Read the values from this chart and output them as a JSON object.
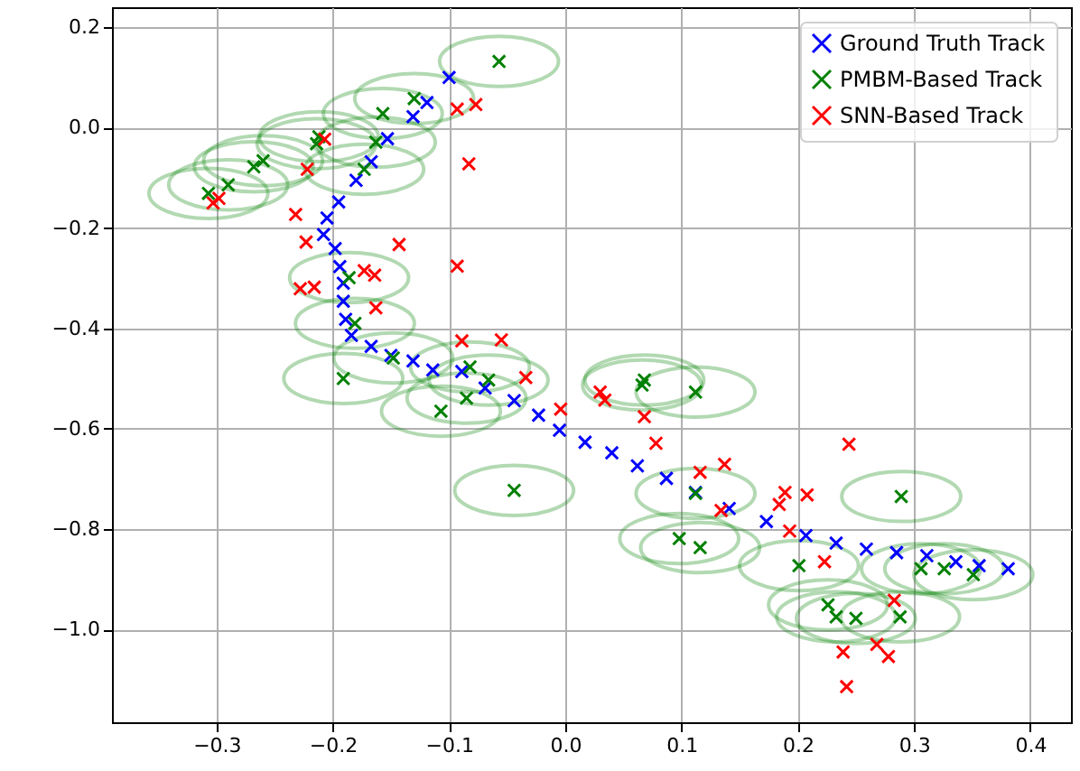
{
  "chart_data": {
    "type": "scatter",
    "marker": "cross",
    "grid": true,
    "legend": "top right",
    "xlim": [
      -0.39,
      0.435
    ],
    "ylim": [
      -1.185,
      0.24
    ],
    "xticks": [
      {
        "value": -0.3,
        "label": "−0.3"
      },
      {
        "value": -0.2,
        "label": "−0.2"
      },
      {
        "value": -0.1,
        "label": "−0.1"
      },
      {
        "value": 0,
        "label": "0.0"
      },
      {
        "value": 0.1,
        "label": "0.1"
      },
      {
        "value": 0.2,
        "label": "0.2"
      },
      {
        "value": 0.3,
        "label": "0.3"
      },
      {
        "value": 0.4,
        "label": "0.4"
      }
    ],
    "yticks": [
      {
        "value": -1,
        "label": "−1.0"
      },
      {
        "value": -0.8,
        "label": "−0.8"
      },
      {
        "value": -0.6,
        "label": "−0.6"
      },
      {
        "value": -0.4,
        "label": "−0.4"
      },
      {
        "value": -0.2,
        "label": "−0.2"
      },
      {
        "value": 0,
        "label": "0.0"
      },
      {
        "value": 0.2,
        "label": "0.2"
      }
    ],
    "series": [
      {
        "name": "Ground Truth Track",
        "color": "#0000ff",
        "x": [
          -0.1,
          -0.119,
          -0.131,
          -0.153,
          -0.167,
          -0.18,
          -0.195,
          -0.205,
          -0.208,
          -0.198,
          -0.194,
          -0.191,
          -0.191,
          -0.189,
          -0.184,
          -0.167,
          -0.15,
          -0.131,
          -0.114,
          -0.089,
          -0.069,
          -0.044,
          -0.023,
          -0.005,
          0.017,
          0.04,
          0.062,
          0.087,
          0.112,
          0.141,
          0.173,
          0.207,
          0.233,
          0.259,
          0.285,
          0.311,
          0.336,
          0.356,
          0.381
        ],
        "values": [
          0.1,
          0.05,
          0.022,
          -0.022,
          -0.068,
          -0.105,
          -0.148,
          -0.18,
          -0.213,
          -0.241,
          -0.277,
          -0.31,
          -0.346,
          -0.382,
          -0.414,
          -0.436,
          -0.454,
          -0.465,
          -0.483,
          -0.486,
          -0.519,
          -0.544,
          -0.573,
          -0.603,
          -0.627,
          -0.648,
          -0.674,
          -0.699,
          -0.727,
          -0.759,
          -0.785,
          -0.813,
          -0.828,
          -0.84,
          -0.847,
          -0.853,
          -0.865,
          -0.873,
          -0.879
        ]
      },
      {
        "name": "PMBM-Based Track",
        "color": "#008000",
        "x": [
          -0.057,
          -0.13,
          -0.157,
          -0.163,
          -0.173,
          -0.214,
          -0.212,
          -0.26,
          -0.268,
          -0.29,
          -0.307,
          -0.186,
          -0.181,
          -0.191,
          -0.148,
          -0.082,
          -0.066,
          -0.107,
          -0.085,
          -0.044,
          0.068,
          0.066,
          0.112,
          0.112,
          0.098,
          0.116,
          0.201,
          0.226,
          0.233,
          0.25,
          0.288,
          0.289,
          0.306,
          0.326,
          0.351
        ],
        "values": [
          0.132,
          0.058,
          0.028,
          -0.029,
          -0.083,
          -0.032,
          -0.018,
          -0.066,
          -0.078,
          -0.114,
          -0.131,
          -0.299,
          -0.39,
          -0.5,
          -0.459,
          -0.477,
          -0.503,
          -0.565,
          -0.539,
          -0.723,
          -0.503,
          -0.513,
          -0.527,
          -0.729,
          -0.819,
          -0.837,
          -0.873,
          -0.951,
          -0.975,
          -0.978,
          -0.975,
          -0.735,
          -0.879,
          -0.879,
          -0.891
        ]
      },
      {
        "name": "SNN-Based Track",
        "color": "#ff0000",
        "x": [
          -0.093,
          -0.077,
          -0.083,
          -0.207,
          -0.222,
          -0.298,
          -0.303,
          -0.232,
          -0.223,
          -0.143,
          -0.093,
          -0.228,
          -0.216,
          -0.173,
          -0.164,
          -0.163,
          -0.089,
          -0.055,
          -0.034,
          -0.004,
          0.03,
          0.034,
          0.068,
          0.078,
          0.116,
          0.137,
          0.134,
          0.189,
          0.184,
          0.208,
          0.193,
          0.223,
          0.244,
          0.283,
          0.239,
          0.268,
          0.278,
          0.242
        ],
        "values": [
          0.037,
          0.046,
          -0.072,
          -0.023,
          -0.083,
          -0.141,
          -0.15,
          -0.173,
          -0.228,
          -0.233,
          -0.276,
          -0.321,
          -0.318,
          -0.285,
          -0.294,
          -0.359,
          -0.425,
          -0.423,
          -0.498,
          -0.561,
          -0.527,
          -0.543,
          -0.576,
          -0.629,
          -0.687,
          -0.671,
          -0.763,
          -0.727,
          -0.751,
          -0.732,
          -0.804,
          -0.865,
          -0.631,
          -0.942,
          -1.045,
          -1.03,
          -1.054,
          -1.114
        ]
      }
    ]
  }
}
